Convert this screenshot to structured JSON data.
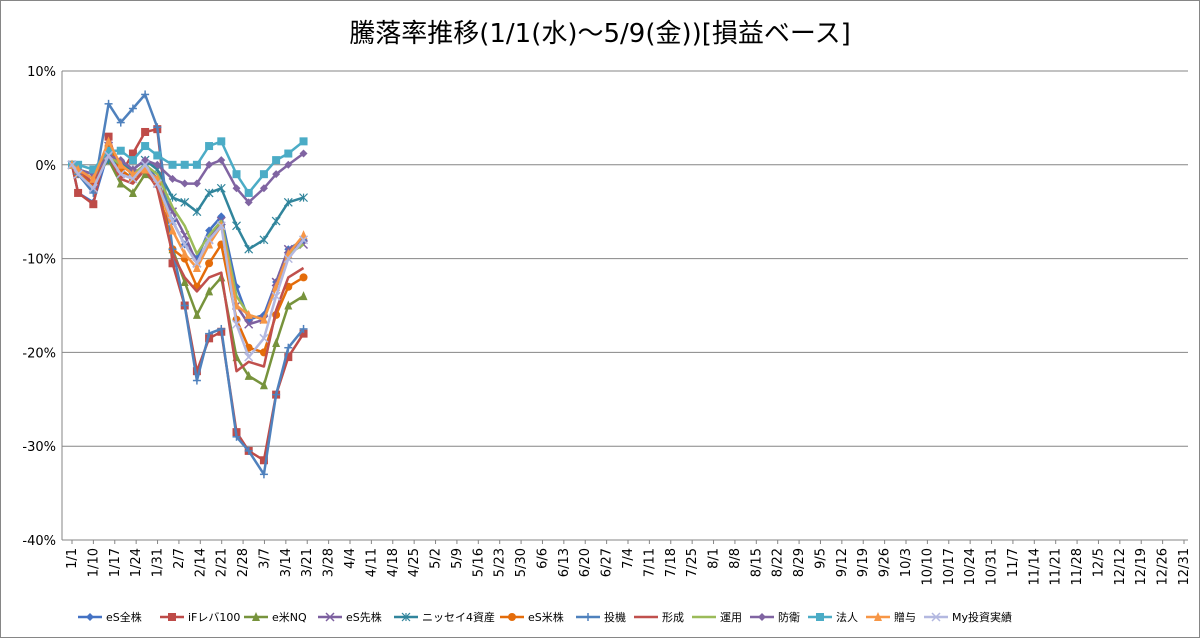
{
  "chart_data": {
    "type": "line",
    "title": "騰落率推移(1/1(水)～5/9(金))[損益ベース]",
    "xlabel": "",
    "ylabel": "",
    "ylim": [
      -40,
      10
    ],
    "yticks": [
      "10%",
      "0%",
      "-10%",
      "-20%",
      "-30%",
      "-40%"
    ],
    "grid": "horizontal",
    "legend_position": "bottom",
    "x_tick_labels": [
      "1/1",
      "1/10",
      "1/17",
      "1/24",
      "1/31",
      "2/7",
      "2/14",
      "2/21",
      "2/28",
      "3/7",
      "3/14",
      "3/21",
      "3/28",
      "4/4",
      "4/11",
      "4/18",
      "4/25",
      "5/2",
      "5/9",
      "5/16",
      "5/23",
      "5/30",
      "6/6",
      "6/13",
      "6/20",
      "6/27",
      "7/4",
      "7/11",
      "7/18",
      "7/25",
      "8/1",
      "8/8",
      "8/15",
      "8/22",
      "8/29",
      "9/5",
      "9/12",
      "9/19",
      "9/26",
      "10/3",
      "10/10",
      "10/17",
      "10/24",
      "10/31",
      "11/7",
      "11/14",
      "11/21",
      "11/28",
      "12/5",
      "12/12",
      "12/19",
      "12/26",
      "12/31"
    ],
    "x_days": [
      0,
      4,
      9,
      14,
      18,
      22,
      26,
      30,
      35,
      39,
      43,
      47,
      51,
      56,
      60,
      64,
      68,
      72,
      77,
      81,
      86,
      91,
      96,
      101,
      106,
      111,
      116,
      121,
      126,
      131,
      136,
      141,
      146,
      151,
      156,
      161,
      166,
      171,
      176,
      181,
      186,
      191,
      196,
      201,
      206,
      211,
      216,
      221,
      226,
      231,
      236,
      241,
      246,
      251,
      256,
      261,
      266,
      271,
      276,
      281,
      286,
      291,
      296,
      301,
      306,
      311,
      316,
      321,
      326,
      331,
      336,
      341,
      346,
      351,
      356,
      361,
      364
    ],
    "x_dates": [
      "1/1",
      "1/3",
      "1/8",
      "1/13",
      "1/17",
      "1/21",
      "1/25",
      "1/29",
      "2/3",
      "2/7",
      "2/11",
      "2/15",
      "2/19",
      "2/24",
      "2/28",
      "3/4",
      "3/8",
      "3/12",
      "3/17",
      "3/21",
      "3/26",
      "3/31",
      "4/5",
      "4/10",
      "4/15",
      "4/20",
      "4/25",
      "4/30",
      "5/5",
      "5/9"
    ],
    "series": [
      {
        "name": "eS全株",
        "color": "#4472C4",
        "marker": "diamond",
        "values": [
          0,
          -3,
          -4,
          1.5,
          0,
          -1,
          0,
          -1.5,
          -6,
          -8.5,
          -10,
          -7,
          -5.5,
          -13,
          -16.5,
          -16,
          -12.5,
          -9,
          -8,
          null,
          null,
          null,
          null,
          null,
          null,
          null,
          null,
          null,
          null,
          null
        ]
      },
      {
        "name": "iFレバ100",
        "color": "#BE4B48",
        "marker": "square",
        "values": [
          0,
          -3,
          -4.2,
          3,
          -1,
          1.2,
          3.5,
          3.8,
          -10.5,
          -15,
          -22,
          -18.5,
          -17.8,
          -28.5,
          -30.5,
          -31.5,
          -24.5,
          -20.5,
          -18,
          null,
          null,
          null,
          null,
          null,
          null,
          null,
          null,
          null,
          null,
          null
        ]
      },
      {
        "name": "e米NQ",
        "color": "#77933C",
        "marker": "triangle",
        "values": [
          0,
          -0.5,
          -1.5,
          0.5,
          -2,
          -3,
          -1,
          -2,
          -9,
          -12.5,
          -16,
          -13.5,
          -12,
          -20.5,
          -22.5,
          -23.5,
          -19,
          -15,
          -14,
          null,
          null,
          null,
          null,
          null,
          null,
          null,
          null,
          null,
          null,
          null
        ]
      },
      {
        "name": "eS先株",
        "color": "#7D60A0",
        "marker": "x",
        "values": [
          0,
          -1,
          -2,
          2,
          0,
          -1,
          0,
          -2,
          -5,
          -7.5,
          -10.5,
          -8,
          -6,
          -15,
          -17,
          -16.5,
          -12.5,
          -9,
          -8.5,
          null,
          null,
          null,
          null,
          null,
          null,
          null,
          null,
          null,
          null,
          null
        ]
      },
      {
        "name": "ニッセイ4資産",
        "color": "#31859C",
        "marker": "asterisk",
        "values": [
          0,
          -0.5,
          -1,
          0.5,
          0,
          -0.5,
          0.5,
          -0.5,
          -3.5,
          -4,
          -5,
          -3,
          -2.5,
          -6.5,
          -9,
          -8,
          -6,
          -4,
          -3.5,
          null,
          null,
          null,
          null,
          null,
          null,
          null,
          null,
          null,
          null,
          null
        ]
      },
      {
        "name": "eS米株",
        "color": "#E46C0A",
        "marker": "circle",
        "values": [
          0,
          -1,
          -2,
          2,
          -0.5,
          -1.5,
          -0.5,
          -2,
          -9,
          -10,
          -13,
          -10.5,
          -8.5,
          -16.5,
          -19.5,
          -20,
          -16,
          -13,
          -12,
          null,
          null,
          null,
          null,
          null,
          null,
          null,
          null,
          null,
          null,
          null
        ]
      },
      {
        "name": "投機",
        "color": "#4F81BD",
        "marker": "plus",
        "values": [
          0,
          -1,
          -3,
          6.5,
          4.5,
          6,
          7.5,
          4,
          -9,
          -15,
          -23,
          -18,
          -17.5,
          -29,
          -30.5,
          -33,
          -24.5,
          -19.5,
          -17.5,
          null,
          null,
          null,
          null,
          null,
          null,
          null,
          null,
          null,
          null,
          null
        ]
      },
      {
        "name": "形成",
        "color": "#C0504D",
        "marker": "none",
        "values": [
          0,
          -0.5,
          -2,
          1,
          -1.5,
          -2,
          -0.5,
          -2.5,
          -9.5,
          -12,
          -13.5,
          -12,
          -11.5,
          -22,
          -21,
          -21.5,
          -15.5,
          -12,
          -11,
          null,
          null,
          null,
          null,
          null,
          null,
          null,
          null,
          null,
          null,
          null
        ]
      },
      {
        "name": "運用",
        "color": "#9BBB59",
        "marker": "none",
        "values": [
          0,
          -0.5,
          -1,
          1,
          0,
          -1,
          0,
          -1,
          -4.5,
          -6.5,
          -9.5,
          -7.5,
          -6,
          -14,
          -16,
          -16.5,
          -13,
          -9.5,
          -8.5,
          null,
          null,
          null,
          null,
          null,
          null,
          null,
          null,
          null,
          null,
          null
        ]
      },
      {
        "name": "防衛",
        "color": "#8064A2",
        "marker": "diamond",
        "values": [
          0,
          -0.5,
          -1,
          1,
          0.5,
          -0.5,
          0.5,
          0,
          -1.5,
          -2,
          -2,
          0,
          0.5,
          -2.5,
          -4,
          -2.5,
          -1,
          0,
          1.2,
          null,
          null,
          null,
          null,
          null,
          null,
          null,
          null,
          null,
          null,
          null
        ]
      },
      {
        "name": "法人",
        "color": "#4BACC6",
        "marker": "square",
        "values": [
          0,
          0,
          -0.5,
          1.5,
          1.5,
          0.5,
          2,
          1,
          0,
          0,
          0,
          2,
          2.5,
          -1,
          -3,
          -1,
          0.5,
          1.2,
          2.5,
          null,
          null,
          null,
          null,
          null,
          null,
          null,
          null,
          null,
          null,
          null
        ]
      },
      {
        "name": "贈与",
        "color": "#F79646",
        "marker": "triangle",
        "values": [
          0,
          -0.5,
          -1.5,
          2.5,
          0,
          -1,
          -0.5,
          -1.5,
          -7,
          -9.5,
          -11,
          -8.5,
          -6.5,
          -15,
          -16,
          -16.5,
          -13,
          -9.5,
          -7.5,
          null,
          null,
          null,
          null,
          null,
          null,
          null,
          null,
          null,
          null,
          null
        ]
      },
      {
        "name": "My投資実績",
        "color": "#B3B8E0",
        "marker": "x",
        "values": [
          0,
          -1,
          -2.5,
          1,
          -1,
          -1.5,
          0,
          -2,
          -6,
          -8.5,
          -10.5,
          -8,
          -6.5,
          -17,
          -20.5,
          -18.5,
          -14,
          -10,
          -8,
          null,
          null,
          null,
          null,
          null,
          null,
          null,
          null,
          null,
          null,
          null
        ]
      }
    ]
  }
}
